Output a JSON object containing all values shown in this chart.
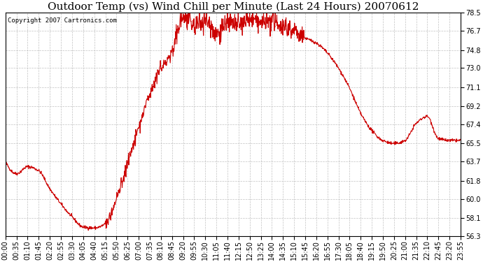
{
  "title": "Outdoor Temp (vs) Wind Chill per Minute (Last 24 Hours) 20070612",
  "copyright_text": "Copyright 2007 Cartronics.com",
  "line_color": "#cc0000",
  "background_color": "#ffffff",
  "plot_bg_color": "#ffffff",
  "grid_color": "#bbbbbb",
  "yticks": [
    56.3,
    58.1,
    60.0,
    61.8,
    63.7,
    65.5,
    67.4,
    69.2,
    71.1,
    73.0,
    74.8,
    76.7,
    78.5
  ],
  "ylim": [
    56.3,
    78.5
  ],
  "xtick_labels": [
    "00:00",
    "00:35",
    "01:10",
    "01:45",
    "02:20",
    "02:55",
    "03:30",
    "04:05",
    "04:40",
    "05:15",
    "05:50",
    "06:25",
    "07:00",
    "07:35",
    "08:10",
    "08:45",
    "09:20",
    "09:55",
    "10:30",
    "11:05",
    "11:40",
    "12:15",
    "12:50",
    "13:25",
    "14:00",
    "14:35",
    "15:10",
    "15:45",
    "16:20",
    "16:55",
    "17:30",
    "18:05",
    "18:40",
    "19:15",
    "19:50",
    "20:25",
    "21:00",
    "21:35",
    "22:10",
    "22:45",
    "23:20",
    "23:55"
  ],
  "title_fontsize": 11,
  "tick_fontsize": 7,
  "line_width": 0.8,
  "copyright_fontsize": 6.5
}
